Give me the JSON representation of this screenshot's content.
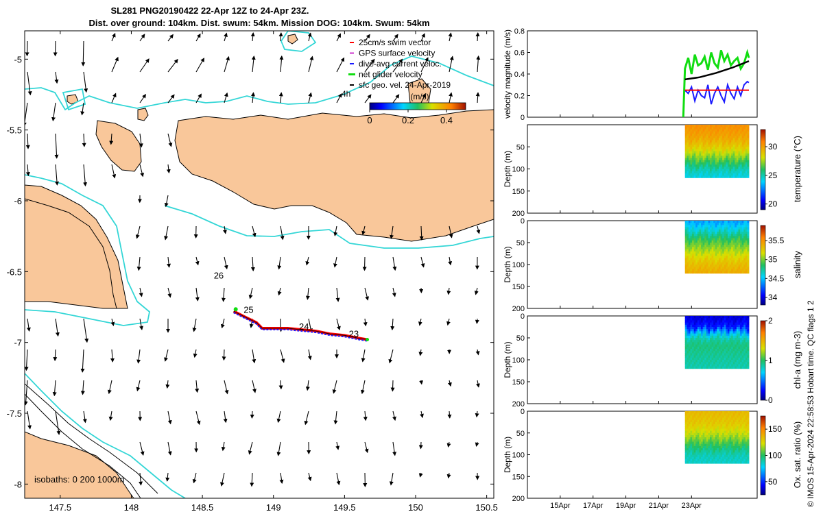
{
  "title_line1": "SL281 PNG20190422 22-Apr 12Z to 24-Apr 23Z.",
  "title_line2": "Dist. over ground: 104km. Dist. swum: 54km. Mission DOG: 104km. Swum: 54km",
  "credit": "© IMOS 15-Apr-2024 22:58:53 Hobart time. QC flags 1  2",
  "colors": {
    "land": "#f9c79a",
    "contour": "#33d6d6",
    "swim": "#ff0000",
    "gps": "#cc33cc",
    "dive": "#1a1aff",
    "net": "#11dd11",
    "sfc": "#000000"
  },
  "chart_data": [
    {
      "id": "map",
      "type": "scatter",
      "xlim": [
        147.25,
        150.55
      ],
      "ylim": [
        -8.1,
        -4.8
      ],
      "x_ticks": [
        147.5,
        148,
        148.5,
        149,
        149.5,
        150,
        150.5
      ],
      "x_tick_labels": [
        "147.5",
        "148",
        "148.5",
        "149",
        "149.5",
        "150",
        "150.5"
      ],
      "y_ticks": [
        -5,
        -5.5,
        -6,
        -6.5,
        -7,
        -7.5,
        -8
      ],
      "y_tick_labels": [
        "-5",
        "-5.5",
        "-6",
        "-6.5",
        "-7",
        "-7.5",
        "-8"
      ],
      "legend": [
        {
          "label": "25cm/s swim vector",
          "color": "#ff0000"
        },
        {
          "label": "GPS surface velocity",
          "color": "#cc33cc"
        },
        {
          "label": "dive-avg current veloc.",
          "color": "#1a1aff"
        },
        {
          "label": "net glider velocity",
          "color": "#11dd11"
        },
        {
          "label": "sfc geo. vel. 24-Apr-2019",
          "color": "#000000"
        }
      ],
      "legend_extra": "4h",
      "colorbar_unit": "(m/s)",
      "colorbar_ticks": [
        0,
        0.2,
        0.4
      ],
      "colorbar_tick_labels": [
        "0",
        "0.2",
        "0.4"
      ],
      "colorbar_range": [
        0,
        0.5
      ],
      "track_labels": [
        {
          "text": "26",
          "lon": 148.58,
          "lat": -6.55
        },
        {
          "text": "25",
          "lon": 148.79,
          "lat": -6.79
        },
        {
          "text": "24",
          "lon": 149.18,
          "lat": -6.91
        },
        {
          "text": "23",
          "lon": 149.53,
          "lat": -6.96
        }
      ],
      "track": [
        [
          148.72,
          -6.78
        ],
        [
          148.8,
          -6.82
        ],
        [
          148.88,
          -6.86
        ],
        [
          148.92,
          -6.9
        ],
        [
          149.0,
          -6.9
        ],
        [
          149.1,
          -6.9
        ],
        [
          149.2,
          -6.91
        ],
        [
          149.3,
          -6.92
        ],
        [
          149.4,
          -6.94
        ],
        [
          149.5,
          -6.95
        ],
        [
          149.6,
          -6.97
        ],
        [
          149.66,
          -6.98
        ]
      ],
      "isobaths_label": "isobaths: 0   200  1000m"
    },
    {
      "id": "velocity",
      "type": "line",
      "ylabel": "velocity magnitude (m/s)",
      "ylim": [
        0,
        0.8
      ],
      "y_ticks": [
        0,
        0.2,
        0.4,
        0.6,
        0.8
      ],
      "y_tick_labels": [
        "0",
        "0.2",
        "0.4",
        "0.6",
        "0.8"
      ],
      "x_range_days": [
        13,
        27
      ],
      "series": [
        {
          "name": "net glider velocity",
          "color": "#11dd11",
          "x": [
            22.5,
            22.6,
            22.8,
            23.0,
            23.2,
            23.4,
            23.6,
            23.8,
            24.0,
            24.2,
            24.4,
            24.6,
            24.8,
            25.0,
            25.2,
            25.4,
            25.6,
            25.8,
            26.0,
            26.2,
            26.4,
            26.5
          ],
          "values": [
            0.0,
            0.45,
            0.55,
            0.4,
            0.58,
            0.48,
            0.5,
            0.56,
            0.44,
            0.6,
            0.5,
            0.46,
            0.62,
            0.52,
            0.58,
            0.48,
            0.52,
            0.55,
            0.45,
            0.5,
            0.6,
            0.55
          ]
        },
        {
          "name": "dive-avg current veloc.",
          "color": "#1a1aff",
          "x": [
            22.6,
            22.8,
            23.0,
            23.2,
            23.4,
            23.6,
            23.8,
            24.0,
            24.2,
            24.4,
            24.6,
            24.8,
            25.0,
            25.2,
            25.4,
            25.6,
            25.8,
            26.0,
            26.2,
            26.4,
            26.5
          ],
          "values": [
            0.25,
            0.22,
            0.28,
            0.15,
            0.25,
            0.2,
            0.18,
            0.3,
            0.12,
            0.22,
            0.28,
            0.2,
            0.14,
            0.3,
            0.22,
            0.17,
            0.28,
            0.2,
            0.3,
            0.33,
            0.32
          ]
        },
        {
          "name": "25cm/s swim vector",
          "color": "#ff0000",
          "x": [
            22.6,
            26.5
          ],
          "values": [
            0.25,
            0.25
          ]
        },
        {
          "name": "sfc geo. vel.",
          "color": "#000000",
          "x": [
            22.6,
            23.5,
            24.5,
            25.5,
            26.5
          ],
          "values": [
            0.35,
            0.37,
            0.41,
            0.46,
            0.52
          ]
        }
      ]
    },
    {
      "id": "temperature",
      "type": "heatmap",
      "ylabel": "Depth (m)",
      "cbar_label": "temperature (°C)",
      "ylim": [
        0,
        200
      ],
      "y_ticks": [
        0,
        50,
        100,
        150,
        200
      ],
      "y_tick_labels": [
        "",
        "50",
        "100",
        "150",
        "200"
      ],
      "x_range_days": [
        22.6,
        26.5
      ],
      "depth_max": 120,
      "cbar_range": [
        19,
        33
      ],
      "cbar_ticks": [
        20,
        25,
        30
      ],
      "cbar_tick_labels": [
        "20",
        "25",
        "30"
      ],
      "profile_depths": [
        0,
        30,
        55,
        75,
        100,
        120
      ],
      "profile_values": [
        30.5,
        29.8,
        28.5,
        27.0,
        25.0,
        24.2
      ]
    },
    {
      "id": "salinity",
      "type": "heatmap",
      "ylabel": "Depth (m)",
      "cbar_label": "salinity",
      "ylim": [
        0,
        200
      ],
      "y_ticks": [
        0,
        50,
        100,
        150,
        200
      ],
      "y_tick_labels": [
        "0",
        "50",
        "100",
        "150",
        "200"
      ],
      "x_range_days": [
        22.6,
        26.5
      ],
      "depth_max": 120,
      "cbar_range": [
        33.8,
        35.9
      ],
      "cbar_ticks": [
        34,
        34.5,
        35,
        35.5
      ],
      "cbar_tick_labels": [
        "34",
        "34.5",
        "35",
        "35.5"
      ],
      "profile_depths": [
        0,
        20,
        45,
        70,
        95,
        120
      ],
      "profile_values": [
        34.4,
        34.6,
        34.9,
        35.1,
        35.3,
        35.4
      ]
    },
    {
      "id": "chla",
      "type": "heatmap",
      "ylabel": "Depth (m)",
      "cbar_label": "chl-a (mg m-3)",
      "ylim": [
        0,
        200
      ],
      "y_ticks": [
        0,
        50,
        100,
        150,
        200
      ],
      "y_tick_labels": [
        "0",
        "50",
        "100",
        "150",
        "200"
      ],
      "x_range_days": [
        22.6,
        26.5
      ],
      "depth_max": 120,
      "cbar_range": [
        0,
        2
      ],
      "cbar_ticks": [
        0,
        1,
        2
      ],
      "cbar_tick_labels": [
        "0",
        "1",
        "2"
      ],
      "profile_depths": [
        0,
        25,
        45,
        65,
        90,
        120
      ],
      "profile_values": [
        0.15,
        0.3,
        0.8,
        0.95,
        0.9,
        0.85
      ]
    },
    {
      "id": "oxygen",
      "type": "heatmap",
      "ylabel": "Depth (m)",
      "cbar_label": "Ox. sat. ratio (%)",
      "ylim": [
        0,
        200
      ],
      "y_ticks": [
        0,
        50,
        100,
        150,
        200
      ],
      "y_tick_labels": [
        "0",
        "50",
        "100",
        "150",
        "200"
      ],
      "x_range_days": [
        22.6,
        26.5
      ],
      "depth_max": 120,
      "cbar_range": [
        25,
        175
      ],
      "cbar_ticks": [
        50,
        100,
        150
      ],
      "cbar_tick_labels": [
        "50",
        "100",
        "150"
      ],
      "profile_depths": [
        0,
        30,
        55,
        80,
        100,
        120
      ],
      "profile_values": [
        135,
        130,
        118,
        100,
        88,
        85
      ]
    }
  ],
  "time_axis": {
    "x_range_days": [
      13,
      27
    ],
    "ticks": [
      15,
      17,
      19,
      21,
      23
    ],
    "tick_labels": [
      "15Apr",
      "17Apr",
      "19Apr",
      "21Apr",
      "23Apr"
    ]
  }
}
